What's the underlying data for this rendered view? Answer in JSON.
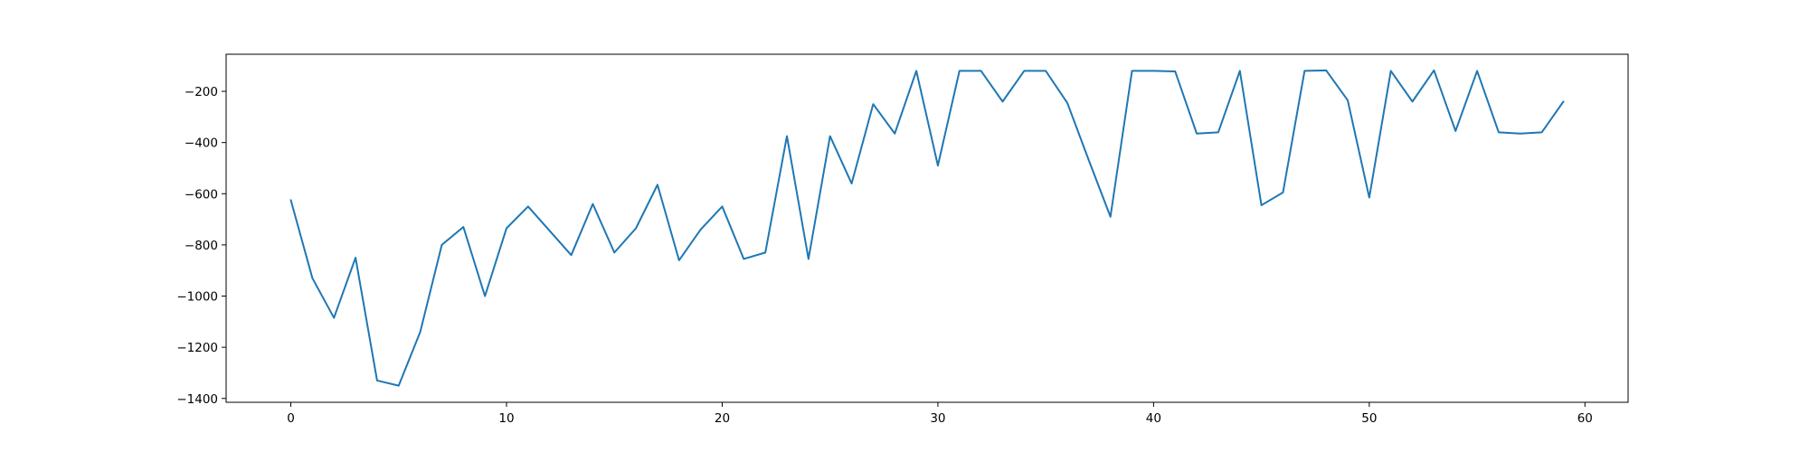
{
  "chart_data": {
    "type": "line",
    "title": "",
    "xlabel": "",
    "ylabel": "",
    "xlim": [
      -3,
      62
    ],
    "ylim": [
      -1415,
      -55
    ],
    "xticks": [
      0,
      10,
      20,
      30,
      40,
      50,
      60
    ],
    "yticks": [
      -1400,
      -1200,
      -1000,
      -800,
      -600,
      -400,
      -200
    ],
    "grid": false,
    "legend": "none",
    "series": [
      {
        "color": "#1f77b4",
        "x": [
          0,
          1,
          2,
          3,
          4,
          5,
          6,
          7,
          8,
          9,
          10,
          11,
          12,
          13,
          14,
          15,
          16,
          17,
          18,
          19,
          20,
          21,
          22,
          23,
          24,
          25,
          26,
          27,
          28,
          29,
          30,
          31,
          32,
          33,
          34,
          35,
          36,
          37,
          38,
          39,
          40,
          41,
          42,
          43,
          44,
          45,
          46,
          47,
          48,
          49,
          50,
          51,
          52,
          53,
          54,
          55,
          56,
          57,
          58,
          59
        ],
        "y": [
          -625,
          -930,
          -1085,
          -850,
          -1330,
          -1350,
          -1140,
          -800,
          -730,
          -1000,
          -735,
          -650,
          -745,
          -840,
          -640,
          -830,
          -735,
          -565,
          -860,
          -740,
          -650,
          -855,
          -830,
          -375,
          -855,
          -375,
          -560,
          -250,
          -365,
          -120,
          -490,
          -120,
          -120,
          -240,
          -120,
          -120,
          -245,
          -470,
          -690,
          -120,
          -120,
          -122,
          -365,
          -360,
          -120,
          -645,
          -595,
          -120,
          -118,
          -235,
          -615,
          -120,
          -240,
          -118,
          -355,
          -120,
          -360,
          -365,
          -360,
          -240
        ]
      }
    ]
  }
}
